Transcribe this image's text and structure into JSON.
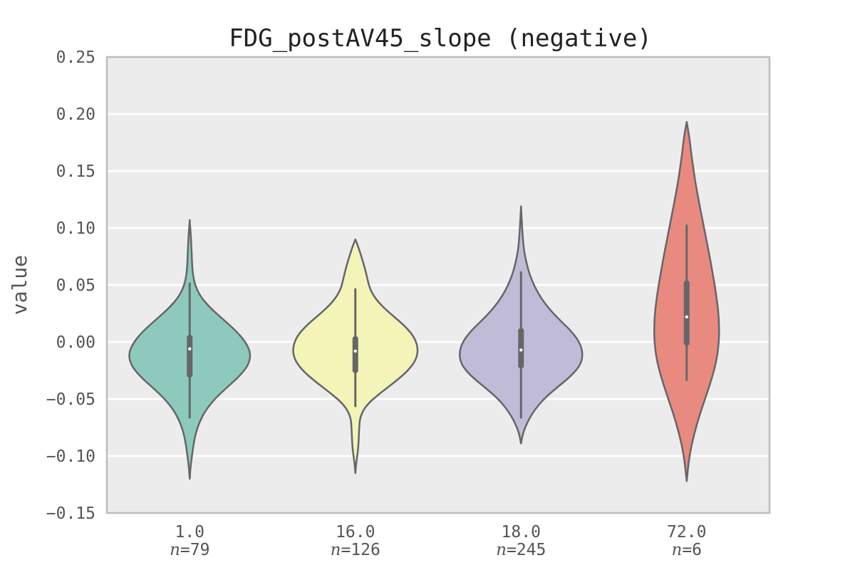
{
  "chart_data": {
    "type": "violin",
    "title": "FDG_postAV45_slope (negative)",
    "xlabel": "",
    "ylabel": "value",
    "ylim": [
      -0.15,
      0.25
    ],
    "yticks": [
      "−0.15",
      "−0.10",
      "−0.05",
      "0.00",
      "0.05",
      "0.10",
      "0.15",
      "0.20",
      "0.25"
    ],
    "grid": true,
    "n_prefix": "n",
    "groups": [
      {
        "category": "1.0",
        "n_text": "=79",
        "color": "#8dcabd",
        "min": -0.12,
        "max": 0.107,
        "median": -0.006,
        "q1": -0.031,
        "q3": 0.006,
        "whisker_low": -0.067,
        "whisker_high": 0.052,
        "profile": [
          [
            -0.12,
            0.0
          ],
          [
            -0.11,
            0.2
          ],
          [
            -0.1,
            0.6
          ],
          [
            -0.09,
            1.0
          ],
          [
            -0.08,
            1.6
          ],
          [
            -0.07,
            2.6
          ],
          [
            -0.06,
            4.2
          ],
          [
            -0.05,
            6.6
          ],
          [
            -0.04,
            9.8
          ],
          [
            -0.03,
            13.2
          ],
          [
            -0.02,
            15.6
          ],
          [
            -0.01,
            16.2
          ],
          [
            0.0,
            14.8
          ],
          [
            0.01,
            12.2
          ],
          [
            0.02,
            8.8
          ],
          [
            0.03,
            5.4
          ],
          [
            0.04,
            2.8
          ],
          [
            0.05,
            1.4
          ],
          [
            0.06,
            0.8
          ],
          [
            0.07,
            0.6
          ],
          [
            0.08,
            0.5
          ],
          [
            0.09,
            0.35
          ],
          [
            0.1,
            0.15
          ],
          [
            0.107,
            0.0
          ]
        ]
      },
      {
        "category": "16.0",
        "n_text": "=126",
        "color": "#f4f4b8",
        "min": -0.115,
        "max": 0.09,
        "median": -0.008,
        "q1": -0.027,
        "q3": 0.005,
        "whisker_low": -0.057,
        "whisker_high": 0.047,
        "profile": [
          [
            -0.115,
            0.0
          ],
          [
            -0.105,
            0.25
          ],
          [
            -0.095,
            0.7
          ],
          [
            -0.085,
            0.9
          ],
          [
            -0.075,
            1.0
          ],
          [
            -0.065,
            1.3
          ],
          [
            -0.055,
            3.0
          ],
          [
            -0.045,
            6.5
          ],
          [
            -0.035,
            10.5
          ],
          [
            -0.025,
            14.0
          ],
          [
            -0.015,
            16.2
          ],
          [
            -0.005,
            16.6
          ],
          [
            0.005,
            15.5
          ],
          [
            0.015,
            12.8
          ],
          [
            0.025,
            9.2
          ],
          [
            0.035,
            6.0
          ],
          [
            0.045,
            4.0
          ],
          [
            0.055,
            3.2
          ],
          [
            0.065,
            2.5
          ],
          [
            0.075,
            1.6
          ],
          [
            0.085,
            0.6
          ],
          [
            0.09,
            0.0
          ]
        ]
      },
      {
        "category": "18.0",
        "n_text": "=245",
        "color": "#c0bcd8",
        "min": -0.089,
        "max": 0.119,
        "median": -0.007,
        "q1": -0.023,
        "q3": 0.012,
        "whisker_low": -0.067,
        "whisker_high": 0.062,
        "profile": [
          [
            -0.089,
            0.0
          ],
          [
            -0.08,
            0.5
          ],
          [
            -0.07,
            1.7
          ],
          [
            -0.06,
            3.5
          ],
          [
            -0.05,
            6.0
          ],
          [
            -0.04,
            9.5
          ],
          [
            -0.03,
            13.2
          ],
          [
            -0.02,
            15.8
          ],
          [
            -0.01,
            16.4
          ],
          [
            0.0,
            15.5
          ],
          [
            0.01,
            13.2
          ],
          [
            0.02,
            10.0
          ],
          [
            0.03,
            7.2
          ],
          [
            0.04,
            5.0
          ],
          [
            0.05,
            3.4
          ],
          [
            0.06,
            2.2
          ],
          [
            0.07,
            1.4
          ],
          [
            0.08,
            0.8
          ],
          [
            0.09,
            0.5
          ],
          [
            0.1,
            0.3
          ],
          [
            0.11,
            0.15
          ],
          [
            0.119,
            0.0
          ]
        ]
      },
      {
        "category": "72.0",
        "n_text": "=6",
        "color": "#e98a80",
        "min": -0.122,
        "max": 0.193,
        "median": 0.022,
        "q1": -0.003,
        "q3": 0.054,
        "whisker_low": -0.034,
        "whisker_high": 0.103,
        "profile": [
          [
            -0.122,
            0.0
          ],
          [
            -0.1,
            0.7
          ],
          [
            -0.08,
            2.0
          ],
          [
            -0.06,
            3.8
          ],
          [
            -0.04,
            5.9
          ],
          [
            -0.02,
            7.7
          ],
          [
            0.0,
            8.6
          ],
          [
            0.02,
            8.6
          ],
          [
            0.04,
            7.9
          ],
          [
            0.06,
            6.9
          ],
          [
            0.08,
            5.8
          ],
          [
            0.1,
            4.6
          ],
          [
            0.12,
            3.4
          ],
          [
            0.14,
            2.3
          ],
          [
            0.16,
            1.4
          ],
          [
            0.18,
            0.7
          ],
          [
            0.193,
            0.0
          ]
        ]
      }
    ]
  }
}
